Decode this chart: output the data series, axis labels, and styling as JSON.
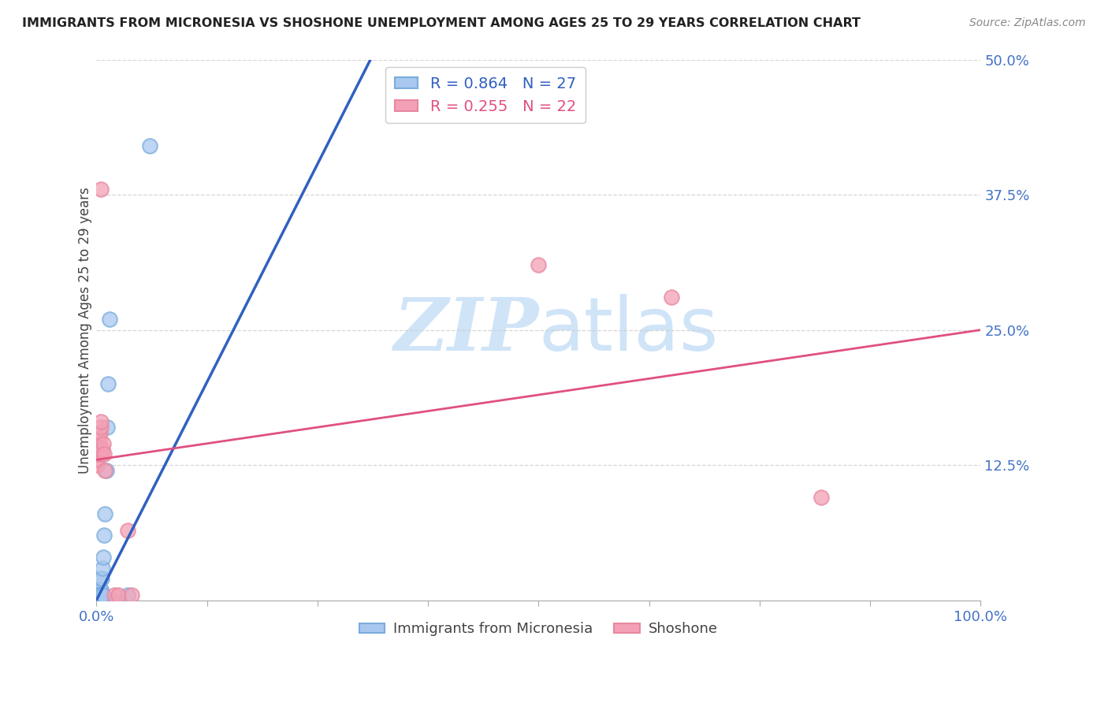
{
  "title": "IMMIGRANTS FROM MICRONESIA VS SHOSHONE UNEMPLOYMENT AMONG AGES 25 TO 29 YEARS CORRELATION CHART",
  "source": "Source: ZipAtlas.com",
  "ylabel": "Unemployment Among Ages 25 to 29 years",
  "blue_label": "Immigrants from Micronesia",
  "pink_label": "Shoshone",
  "blue_R": 0.864,
  "blue_N": 27,
  "pink_R": 0.255,
  "pink_N": 22,
  "blue_color": "#a8c8f0",
  "pink_color": "#f4a0b5",
  "blue_edge_color": "#7aacdc",
  "pink_edge_color": "#e888a0",
  "blue_line_color": "#3060c0",
  "pink_line_color": "#e05080",
  "background_color": "#ffffff",
  "watermark_color": "#d0e4f8",
  "xlim": [
    0,
    1.0
  ],
  "ylim": [
    0,
    0.5
  ],
  "yticks": [
    0.0,
    0.125,
    0.25,
    0.375,
    0.5
  ],
  "ytick_labels": [
    "",
    "12.5%",
    "25.0%",
    "37.5%",
    "50.0%"
  ],
  "xtick_positions": [
    0.0,
    0.125,
    0.25,
    0.375,
    0.5,
    0.625,
    0.75,
    0.875,
    1.0
  ],
  "blue_x": [
    0.001,
    0.002,
    0.002,
    0.003,
    0.003,
    0.004,
    0.005,
    0.005,
    0.006,
    0.007,
    0.008,
    0.009,
    0.01,
    0.011,
    0.012,
    0.013,
    0.015,
    0.018,
    0.001,
    0.002,
    0.003,
    0.004,
    0.005,
    0.006,
    0.008,
    0.035,
    0.06
  ],
  "blue_y": [
    0.005,
    0.005,
    0.005,
    0.005,
    0.01,
    0.01,
    0.01,
    0.02,
    0.02,
    0.03,
    0.04,
    0.06,
    0.08,
    0.12,
    0.16,
    0.2,
    0.26,
    0.0,
    0.005,
    0.005,
    0.005,
    0.005,
    0.005,
    0.005,
    0.005,
    0.005,
    0.42
  ],
  "pink_x": [
    0.001,
    0.001,
    0.002,
    0.002,
    0.003,
    0.003,
    0.004,
    0.005,
    0.005,
    0.006,
    0.007,
    0.008,
    0.009,
    0.01,
    0.02,
    0.025,
    0.035,
    0.04,
    0.5,
    0.65,
    0.82,
    0.005
  ],
  "pink_y": [
    0.125,
    0.13,
    0.135,
    0.14,
    0.145,
    0.15,
    0.155,
    0.16,
    0.165,
    0.135,
    0.14,
    0.145,
    0.135,
    0.12,
    0.005,
    0.005,
    0.065,
    0.005,
    0.31,
    0.28,
    0.095,
    0.38
  ],
  "blue_line_x0": 0.0,
  "blue_line_y0": 0.0,
  "blue_line_x1": 0.31,
  "blue_line_y1": 0.5,
  "pink_line_x0": 0.0,
  "pink_line_y0": 0.13,
  "pink_line_x1": 1.0,
  "pink_line_y1": 0.25
}
